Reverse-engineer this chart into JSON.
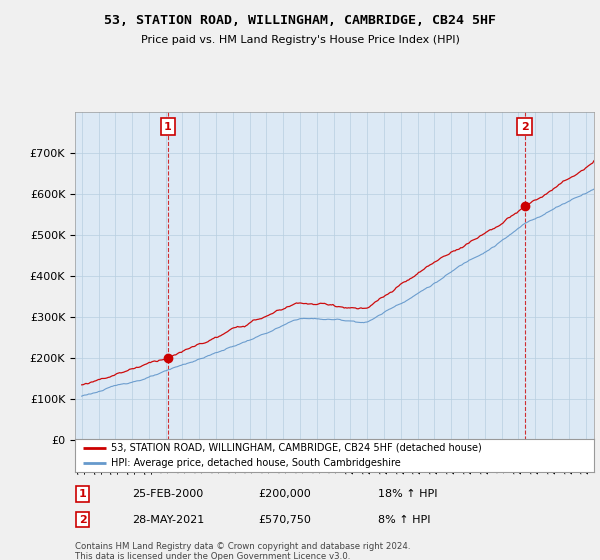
{
  "title": "53, STATION ROAD, WILLINGHAM, CAMBRIDGE, CB24 5HF",
  "subtitle": "Price paid vs. HM Land Registry's House Price Index (HPI)",
  "legend_line1": "53, STATION ROAD, WILLINGHAM, CAMBRIDGE, CB24 5HF (detached house)",
  "legend_line2": "HPI: Average price, detached house, South Cambridgeshire",
  "annotation1_label": "1",
  "annotation1_date": "25-FEB-2000",
  "annotation1_price": "£200,000",
  "annotation1_hpi": "18% ↑ HPI",
  "annotation2_label": "2",
  "annotation2_date": "28-MAY-2021",
  "annotation2_price": "£570,750",
  "annotation2_hpi": "8% ↑ HPI",
  "footer": "Contains HM Land Registry data © Crown copyright and database right 2024.\nThis data is licensed under the Open Government Licence v3.0.",
  "sale1_year": 2000.12,
  "sale1_price": 200000,
  "sale2_year": 2021.37,
  "sale2_price": 570750,
  "red_color": "#cc0000",
  "blue_color": "#6699cc",
  "background_color": "#f0f0f0",
  "plot_bg_color": "#dce9f5",
  "ylim": [
    0,
    800000
  ],
  "xlim_start": 1994.6,
  "xlim_end": 2025.5
}
